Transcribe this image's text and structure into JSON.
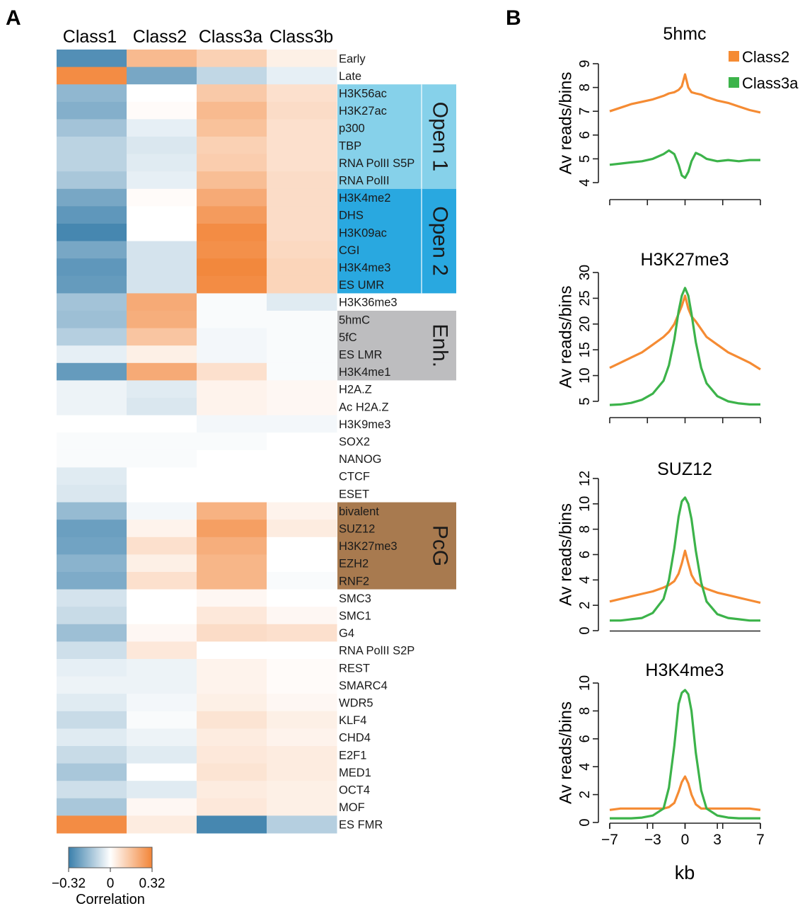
{
  "panels": {
    "a_label": "A",
    "b_label": "B"
  },
  "chart_data": [
    {
      "type": "heatmap",
      "columns": [
        "Class1",
        "Class2",
        "Class3a",
        "Class3b"
      ],
      "rows": [
        "Early",
        "Late",
        "H3K56ac",
        "H3K27ac",
        "p300",
        "TBP",
        "RNA PolII S5P",
        "RNA PolII",
        "H3K4me2",
        "DHS",
        "H3K09ac",
        "CGI",
        "H3K4me3",
        "ES UMR",
        "H3K36me3",
        "5hmC",
        "5fC",
        "ES LMR",
        "H3K4me1",
        "H2A.Z",
        "Ac H2A.Z",
        "H3K9me3",
        "SOX2",
        "NANOG",
        "CTCF",
        "ESET",
        "bivalent",
        "SUZ12",
        "H3K27me3",
        "EZH2",
        "RNF2",
        "SMC3",
        "SMC1",
        "G4",
        "RNA PolII S2P",
        "REST",
        "SMARC4",
        "WDR5",
        "KLF4",
        "CHD4",
        "E2F1",
        "MED1",
        "OCT4",
        "MOF",
        "ES FMR"
      ],
      "values": [
        [
          -0.28,
          0.18,
          0.12,
          0.04
        ],
        [
          0.3,
          -0.22,
          -0.1,
          -0.04
        ],
        [
          -0.18,
          0.0,
          0.14,
          0.08
        ],
        [
          -0.2,
          0.01,
          0.18,
          0.09
        ],
        [
          -0.15,
          -0.04,
          0.16,
          0.08
        ],
        [
          -0.11,
          -0.06,
          0.12,
          0.08
        ],
        [
          -0.11,
          -0.05,
          0.13,
          0.08
        ],
        [
          -0.14,
          -0.04,
          0.17,
          0.09
        ],
        [
          -0.22,
          0.01,
          0.22,
          0.09
        ],
        [
          -0.26,
          0.0,
          0.26,
          0.09
        ],
        [
          -0.3,
          0.0,
          0.3,
          0.09
        ],
        [
          -0.22,
          -0.07,
          0.29,
          0.1
        ],
        [
          -0.26,
          -0.07,
          0.31,
          0.11
        ],
        [
          -0.25,
          -0.07,
          0.3,
          0.11
        ],
        [
          -0.15,
          0.22,
          -0.01,
          -0.05
        ],
        [
          -0.16,
          0.21,
          -0.01,
          -0.01
        ],
        [
          -0.12,
          0.15,
          -0.02,
          -0.01
        ],
        [
          -0.04,
          0.04,
          -0.02,
          -0.01
        ],
        [
          -0.25,
          0.22,
          0.08,
          -0.01
        ],
        [
          -0.03,
          -0.05,
          0.03,
          0.02
        ],
        [
          -0.03,
          -0.06,
          0.03,
          0.02
        ],
        [
          0.0,
          0.0,
          -0.02,
          -0.02
        ],
        [
          -0.01,
          -0.01,
          -0.01,
          0.0
        ],
        [
          -0.01,
          -0.01,
          0.0,
          0.0
        ],
        [
          -0.05,
          0.0,
          0.0,
          0.0
        ],
        [
          -0.06,
          0.0,
          0.0,
          0.0
        ],
        [
          -0.17,
          -0.02,
          0.2,
          0.03
        ],
        [
          -0.24,
          0.03,
          0.25,
          0.05
        ],
        [
          -0.23,
          0.08,
          0.21,
          0.0
        ],
        [
          -0.19,
          0.04,
          0.19,
          0.0
        ],
        [
          -0.21,
          0.08,
          0.19,
          -0.01
        ],
        [
          -0.07,
          0.0,
          0.02,
          0.0
        ],
        [
          -0.09,
          0.0,
          0.06,
          0.02
        ],
        [
          -0.16,
          0.02,
          0.09,
          0.08
        ],
        [
          -0.08,
          0.06,
          0.0,
          0.0
        ],
        [
          -0.04,
          -0.03,
          0.03,
          0.01
        ],
        [
          -0.03,
          -0.03,
          0.03,
          0.01
        ],
        [
          -0.05,
          -0.02,
          0.04,
          0.02
        ],
        [
          -0.09,
          -0.01,
          0.07,
          0.04
        ],
        [
          -0.05,
          -0.03,
          0.05,
          0.03
        ],
        [
          -0.09,
          -0.05,
          0.06,
          0.05
        ],
        [
          -0.14,
          0.0,
          0.07,
          0.05
        ],
        [
          -0.08,
          -0.05,
          0.05,
          0.04
        ],
        [
          -0.14,
          0.02,
          0.06,
          0.04
        ],
        [
          0.3,
          0.05,
          -0.3,
          -0.12
        ]
      ],
      "groups": [
        {
          "label": "Open 1",
          "start_row": "H3K56ac",
          "end_row": "RNA PolII",
          "color": "#86d1ea"
        },
        {
          "label": "Open 2",
          "start_row": "H3K4me2",
          "end_row": "ES UMR",
          "color": "#29a8e0"
        },
        {
          "label": "Enh.",
          "start_row": "5hmC",
          "end_row": "H3K4me1",
          "color": "#bdbdbf"
        },
        {
          "label": "PcG",
          "start_row": "bivalent",
          "end_row": "RNF2",
          "color": "#a87a4f"
        }
      ],
      "colorbar": {
        "min": -0.32,
        "max": 0.32,
        "tick_labels": [
          "−0.32",
          "0",
          "0.32"
        ],
        "label": "Correlation",
        "low_color": "#3a7fab",
        "mid_color": "#ffffff",
        "high_color": "#f28437"
      }
    },
    {
      "type": "line",
      "title": "5hmc",
      "xlabel": "kb",
      "ylabel": "Av reads/bins",
      "xlim": [
        -7,
        7
      ],
      "ylim": [
        4,
        9
      ],
      "yticks": [
        4,
        5,
        6,
        7,
        8,
        9
      ],
      "x": [
        -7,
        -6,
        -5,
        -4,
        -3,
        -2,
        -1.5,
        -1,
        -0.6,
        -0.3,
        0,
        0.3,
        0.6,
        1,
        1.5,
        2,
        3,
        4,
        5,
        6,
        7
      ],
      "series": [
        {
          "name": "Class2",
          "color": "#f58b33",
          "values": [
            7.0,
            7.15,
            7.3,
            7.4,
            7.5,
            7.65,
            7.75,
            7.8,
            7.9,
            8.05,
            8.55,
            8.0,
            7.8,
            7.75,
            7.7,
            7.6,
            7.45,
            7.35,
            7.2,
            7.05,
            6.95
          ]
        },
        {
          "name": "Class3a",
          "color": "#3cb34a",
          "values": [
            4.75,
            4.8,
            4.85,
            4.9,
            5.0,
            5.2,
            5.35,
            5.2,
            4.75,
            4.3,
            4.2,
            4.45,
            4.9,
            5.25,
            5.15,
            5.0,
            4.9,
            4.95,
            4.9,
            4.95,
            4.95
          ]
        }
      ],
      "legend": [
        "Class2",
        "Class3a"
      ],
      "legend_position": "top-right"
    },
    {
      "type": "line",
      "title": "H3K27me3",
      "xlabel": "kb",
      "ylabel": "Av reads/bins",
      "xlim": [
        -7,
        7
      ],
      "ylim": [
        5,
        30
      ],
      "yticks": [
        5,
        10,
        15,
        20,
        25,
        30
      ],
      "x": [
        -7,
        -6,
        -5,
        -4,
        -3,
        -2,
        -1.5,
        -1,
        -0.6,
        -0.3,
        0,
        0.3,
        0.6,
        1,
        1.5,
        2,
        3,
        4,
        5,
        6,
        7
      ],
      "series": [
        {
          "name": "Class2",
          "color": "#f58b33",
          "values": [
            11.5,
            12.5,
            13.5,
            14.5,
            16.0,
            17.5,
            18.5,
            20.0,
            22.0,
            23.5,
            25.5,
            23.0,
            21.5,
            20.5,
            19.0,
            17.5,
            16.0,
            14.5,
            13.5,
            12.5,
            11.2
          ]
        },
        {
          "name": "Class3a",
          "color": "#3cb34a",
          "values": [
            4.3,
            4.4,
            4.7,
            5.3,
            6.5,
            9.0,
            12.0,
            17.0,
            22.5,
            25.5,
            27.0,
            25.5,
            22.0,
            16.5,
            11.5,
            8.5,
            6.0,
            5.0,
            4.6,
            4.4,
            4.4
          ]
        }
      ]
    },
    {
      "type": "line",
      "title": "SUZ12",
      "xlabel": "kb",
      "ylabel": "Av reads/bins",
      "xlim": [
        -7,
        7
      ],
      "ylim": [
        0,
        12
      ],
      "yticks": [
        0,
        2,
        4,
        6,
        8,
        10,
        12
      ],
      "x": [
        -7,
        -6,
        -5,
        -4,
        -3,
        -2,
        -1.5,
        -1,
        -0.6,
        -0.3,
        0,
        0.3,
        0.6,
        1,
        1.5,
        2,
        3,
        4,
        5,
        6,
        7
      ],
      "series": [
        {
          "name": "Class2",
          "color": "#f58b33",
          "values": [
            2.3,
            2.5,
            2.7,
            2.9,
            3.1,
            3.4,
            3.6,
            3.9,
            4.5,
            5.3,
            6.3,
            5.3,
            4.4,
            3.8,
            3.5,
            3.3,
            3.0,
            2.8,
            2.6,
            2.4,
            2.2
          ]
        },
        {
          "name": "Class3a",
          "color": "#3cb34a",
          "values": [
            0.8,
            0.8,
            0.9,
            1.0,
            1.4,
            2.5,
            4.0,
            6.5,
            9.0,
            10.2,
            10.5,
            10.0,
            8.8,
            6.3,
            3.8,
            2.3,
            1.3,
            1.0,
            0.9,
            0.8,
            0.8
          ]
        }
      ]
    },
    {
      "type": "line",
      "title": "H3K4me3",
      "xlabel": "kb",
      "ylabel": "Av reads/bins",
      "xlim": [
        -7,
        7
      ],
      "ylim": [
        0,
        10
      ],
      "yticks": [
        0,
        2,
        4,
        6,
        8,
        10
      ],
      "xticks": [
        -7,
        -3,
        0,
        3,
        7
      ],
      "xtick_labels": [
        "−7",
        "−3",
        "0",
        "3",
        "7"
      ],
      "x": [
        -7,
        -6,
        -5,
        -4,
        -3,
        -2,
        -1.5,
        -1,
        -0.6,
        -0.3,
        0,
        0.3,
        0.6,
        1,
        1.5,
        2,
        3,
        4,
        5,
        6,
        7
      ],
      "series": [
        {
          "name": "Class2",
          "color": "#f58b33",
          "values": [
            0.9,
            1.0,
            1.0,
            1.0,
            1.0,
            1.0,
            1.1,
            1.4,
            2.2,
            2.9,
            3.3,
            2.8,
            2.0,
            1.3,
            1.0,
            1.0,
            1.0,
            1.0,
            1.0,
            1.0,
            0.9
          ]
        },
        {
          "name": "Class3a",
          "color": "#3cb34a",
          "values": [
            0.3,
            0.3,
            0.3,
            0.35,
            0.5,
            1.0,
            2.5,
            5.5,
            8.5,
            9.3,
            9.5,
            9.2,
            8.0,
            5.0,
            2.3,
            1.0,
            0.5,
            0.35,
            0.3,
            0.3,
            0.3
          ]
        }
      ]
    }
  ]
}
